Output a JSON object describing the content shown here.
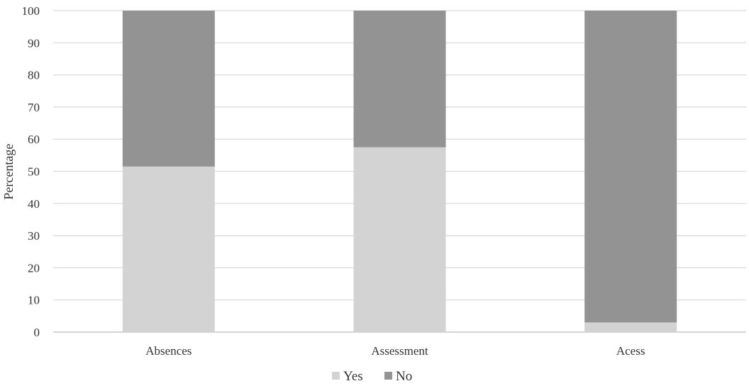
{
  "chart_data": {
    "type": "bar",
    "stacked": true,
    "categories": [
      "Absences",
      "Assessment",
      "Acess"
    ],
    "series": [
      {
        "name": "Yes",
        "values": [
          51.5,
          57.5,
          3
        ],
        "color": "#d3d3d3"
      },
      {
        "name": "No",
        "values": [
          48.5,
          42.5,
          97
        ],
        "color": "#939393"
      }
    ],
    "xlabel": "",
    "ylabel": "Percentage",
    "ylim": [
      0,
      100
    ],
    "yticks": [
      0,
      10,
      20,
      30,
      40,
      50,
      60,
      70,
      80,
      90,
      100
    ],
    "grid": true,
    "legend_position": "bottom"
  }
}
